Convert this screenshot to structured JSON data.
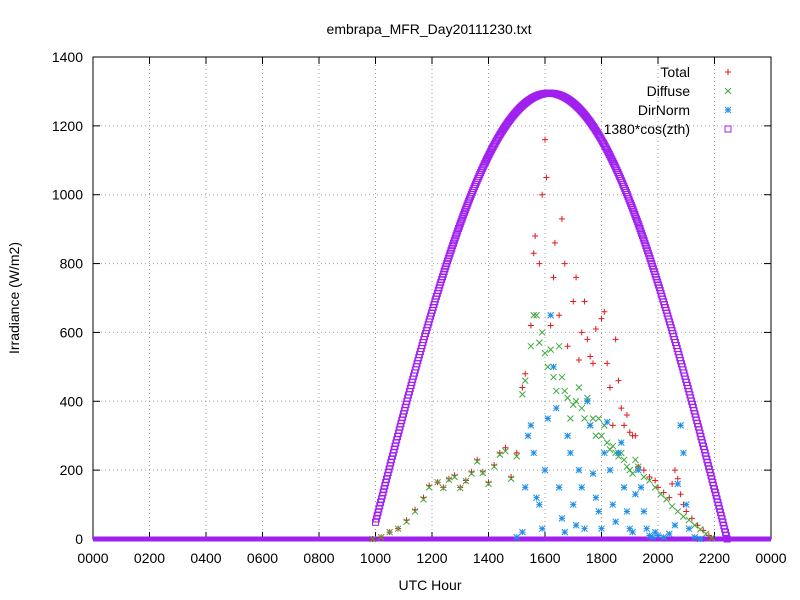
{
  "chart_data": {
    "type": "scatter",
    "title": "embrapa_MFR_Day20111230.txt",
    "xlabel": "UTC Hour",
    "ylabel": "Irradiance (W/m2)",
    "xlim": [
      0,
      24
    ],
    "ylim": [
      0,
      1400
    ],
    "x_ticks": [
      0,
      2,
      4,
      6,
      8,
      10,
      12,
      14,
      16,
      18,
      20,
      22,
      24
    ],
    "x_tick_labels": [
      "0000",
      "0200",
      "0400",
      "0600",
      "0800",
      "1000",
      "1200",
      "1400",
      "1600",
      "1800",
      "2000",
      "2200",
      "0000"
    ],
    "y_ticks": [
      0,
      200,
      400,
      600,
      800,
      1000,
      1200,
      1400
    ],
    "y_tick_labels": [
      "0",
      "200",
      "400",
      "600",
      "800",
      "1000",
      "1200",
      "1400"
    ],
    "grid": true,
    "legend_position": "top-right",
    "series": [
      {
        "name": "Total",
        "marker": "plus",
        "color": "#e41a1c",
        "points": [
          [
            9.9,
            0
          ],
          [
            10.2,
            5
          ],
          [
            10.5,
            20
          ],
          [
            10.8,
            30
          ],
          [
            11.1,
            55
          ],
          [
            11.4,
            85
          ],
          [
            11.7,
            120
          ],
          [
            11.9,
            155
          ],
          [
            12.2,
            165
          ],
          [
            12.4,
            150
          ],
          [
            12.6,
            175
          ],
          [
            12.8,
            185
          ],
          [
            13.0,
            150
          ],
          [
            13.2,
            170
          ],
          [
            13.4,
            195
          ],
          [
            13.6,
            230
          ],
          [
            13.8,
            195
          ],
          [
            14.0,
            165
          ],
          [
            14.2,
            215
          ],
          [
            14.4,
            250
          ],
          [
            14.6,
            265
          ],
          [
            14.8,
            180
          ],
          [
            15.0,
            250
          ],
          [
            15.2,
            440
          ],
          [
            15.3,
            480
          ],
          [
            15.5,
            620
          ],
          [
            15.6,
            830
          ],
          [
            15.65,
            880
          ],
          [
            15.8,
            800
          ],
          [
            15.9,
            1000
          ],
          [
            16.0,
            1160
          ],
          [
            16.05,
            1050
          ],
          [
            16.2,
            620
          ],
          [
            16.3,
            760
          ],
          [
            16.35,
            860
          ],
          [
            16.5,
            650
          ],
          [
            16.6,
            930
          ],
          [
            16.7,
            800
          ],
          [
            16.8,
            560
          ],
          [
            17.0,
            690
          ],
          [
            17.1,
            760
          ],
          [
            17.2,
            520
          ],
          [
            17.3,
            600
          ],
          [
            17.4,
            690
          ],
          [
            17.5,
            580
          ],
          [
            17.6,
            530
          ],
          [
            17.7,
            510
          ],
          [
            17.8,
            610
          ],
          [
            18.0,
            640
          ],
          [
            18.1,
            660
          ],
          [
            18.2,
            510
          ],
          [
            18.3,
            440
          ],
          [
            18.4,
            330
          ],
          [
            18.5,
            580
          ],
          [
            18.6,
            460
          ],
          [
            18.7,
            380
          ],
          [
            18.8,
            330
          ],
          [
            18.9,
            360
          ],
          [
            19.0,
            310
          ],
          [
            19.1,
            300
          ],
          [
            19.2,
            300
          ],
          [
            19.3,
            210
          ],
          [
            19.5,
            200
          ],
          [
            19.7,
            180
          ],
          [
            19.9,
            170
          ],
          [
            20.0,
            150
          ],
          [
            20.2,
            135
          ],
          [
            20.4,
            120
          ],
          [
            20.5,
            160
          ],
          [
            20.6,
            200
          ],
          [
            20.7,
            175
          ],
          [
            20.8,
            130
          ],
          [
            20.9,
            100
          ],
          [
            21.0,
            80
          ],
          [
            21.2,
            60
          ],
          [
            21.4,
            40
          ],
          [
            21.6,
            25
          ],
          [
            21.8,
            10
          ],
          [
            21.9,
            2
          ]
        ]
      },
      {
        "name": "Diffuse",
        "marker": "cross",
        "color": "#3da83d",
        "points": [
          [
            9.9,
            0
          ],
          [
            10.2,
            5
          ],
          [
            10.5,
            20
          ],
          [
            10.8,
            30
          ],
          [
            11.1,
            50
          ],
          [
            11.4,
            80
          ],
          [
            11.7,
            115
          ],
          [
            11.9,
            150
          ],
          [
            12.2,
            165
          ],
          [
            12.4,
            148
          ],
          [
            12.6,
            172
          ],
          [
            12.8,
            180
          ],
          [
            13.0,
            148
          ],
          [
            13.2,
            168
          ],
          [
            13.4,
            190
          ],
          [
            13.6,
            225
          ],
          [
            13.8,
            192
          ],
          [
            14.0,
            160
          ],
          [
            14.2,
            210
          ],
          [
            14.4,
            245
          ],
          [
            14.6,
            255
          ],
          [
            14.8,
            175
          ],
          [
            15.0,
            240
          ],
          [
            15.2,
            420
          ],
          [
            15.3,
            460
          ],
          [
            15.5,
            560
          ],
          [
            15.6,
            650
          ],
          [
            15.7,
            650
          ],
          [
            15.8,
            570
          ],
          [
            15.9,
            600
          ],
          [
            16.0,
            540
          ],
          [
            16.1,
            500
          ],
          [
            16.2,
            550
          ],
          [
            16.3,
            470
          ],
          [
            16.4,
            430
          ],
          [
            16.5,
            560
          ],
          [
            16.6,
            470
          ],
          [
            16.7,
            430
          ],
          [
            16.8,
            410
          ],
          [
            16.9,
            350
          ],
          [
            17.0,
            390
          ],
          [
            17.1,
            400
          ],
          [
            17.2,
            440
          ],
          [
            17.3,
            380
          ],
          [
            17.4,
            350
          ],
          [
            17.5,
            410
          ],
          [
            17.6,
            330
          ],
          [
            17.7,
            350
          ],
          [
            17.8,
            300
          ],
          [
            17.9,
            350
          ],
          [
            18.0,
            300
          ],
          [
            18.1,
            330
          ],
          [
            18.2,
            280
          ],
          [
            18.3,
            260
          ],
          [
            18.4,
            270
          ],
          [
            18.5,
            250
          ],
          [
            18.6,
            240
          ],
          [
            18.7,
            250
          ],
          [
            18.8,
            230
          ],
          [
            18.9,
            210
          ],
          [
            19.0,
            200
          ],
          [
            19.1,
            190
          ],
          [
            19.2,
            230
          ],
          [
            19.3,
            210
          ],
          [
            19.5,
            180
          ],
          [
            19.7,
            170
          ],
          [
            19.9,
            150
          ],
          [
            20.1,
            130
          ],
          [
            20.3,
            115
          ],
          [
            20.5,
            95
          ],
          [
            20.7,
            80
          ],
          [
            20.9,
            65
          ],
          [
            21.1,
            55
          ],
          [
            21.3,
            40
          ],
          [
            21.5,
            28
          ],
          [
            21.7,
            15
          ],
          [
            21.9,
            3
          ]
        ]
      },
      {
        "name": "DirNorm",
        "marker": "star",
        "color": "#1e8fe8",
        "points": [
          [
            15.0,
            5
          ],
          [
            15.2,
            20
          ],
          [
            15.3,
            150
          ],
          [
            15.4,
            300
          ],
          [
            15.5,
            330
          ],
          [
            15.6,
            250
          ],
          [
            15.7,
            120
          ],
          [
            15.8,
            100
          ],
          [
            15.9,
            30
          ],
          [
            16.0,
            200
          ],
          [
            16.1,
            350
          ],
          [
            16.2,
            650
          ],
          [
            16.3,
            500
          ],
          [
            16.4,
            380
          ],
          [
            16.5,
            150
          ],
          [
            16.6,
            60
          ],
          [
            16.7,
            20
          ],
          [
            16.8,
            300
          ],
          [
            16.9,
            250
          ],
          [
            17.0,
            100
          ],
          [
            17.1,
            40
          ],
          [
            17.2,
            200
          ],
          [
            17.3,
            150
          ],
          [
            17.4,
            30
          ],
          [
            17.5,
            400
          ],
          [
            17.6,
            330
          ],
          [
            17.7,
            190
          ],
          [
            17.8,
            120
          ],
          [
            17.9,
            80
          ],
          [
            18.0,
            30
          ],
          [
            18.1,
            250
          ],
          [
            18.2,
            340
          ],
          [
            18.3,
            200
          ],
          [
            18.4,
            100
          ],
          [
            18.5,
            50
          ],
          [
            18.6,
            250
          ],
          [
            18.7,
            280
          ],
          [
            18.8,
            150
          ],
          [
            18.9,
            80
          ],
          [
            19.0,
            30
          ],
          [
            19.1,
            20
          ],
          [
            19.2,
            130
          ],
          [
            19.3,
            200
          ],
          [
            19.4,
            150
          ],
          [
            19.5,
            80
          ],
          [
            19.6,
            30
          ],
          [
            19.7,
            10
          ],
          [
            19.8,
            5
          ],
          [
            19.9,
            20
          ],
          [
            20.0,
            10
          ],
          [
            20.2,
            5
          ],
          [
            20.4,
            15
          ],
          [
            20.6,
            40
          ],
          [
            20.7,
            160
          ],
          [
            20.8,
            330
          ],
          [
            20.9,
            250
          ],
          [
            21.0,
            100
          ],
          [
            21.1,
            30
          ],
          [
            21.3,
            5
          ],
          [
            21.5,
            0
          ]
        ]
      },
      {
        "name": "1380*cos(zth)",
        "marker": "square",
        "color": "#a020f0",
        "curve": {
          "start": 10.0,
          "end": 22.45,
          "peak_x": 16.15,
          "peak_y": 1295
        }
      }
    ],
    "baseline": {
      "y": 0,
      "color": "#a020f0"
    }
  }
}
